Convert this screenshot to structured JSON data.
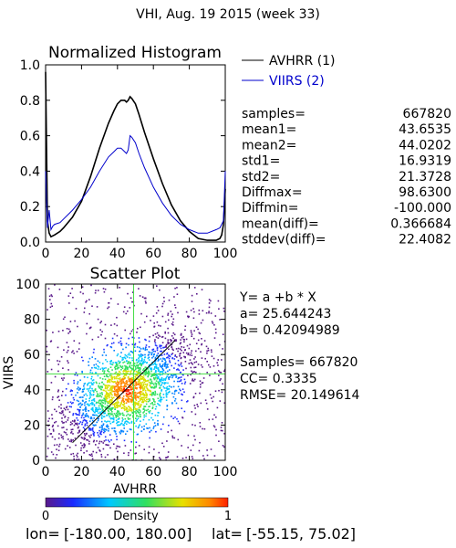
{
  "header": {
    "title": "VHI,  Aug. 19 2015 (week 33)"
  },
  "chart_data": [
    {
      "type": "line",
      "title": "Normalized Histogram",
      "xlabel": "",
      "ylabel": "",
      "xlim": [
        0,
        100
      ],
      "ylim": [
        0,
        1.0
      ],
      "x_ticks": [
        "0",
        "20",
        "40",
        "60",
        "80",
        "100"
      ],
      "y_ticks": [
        "0.0",
        "0.2",
        "0.4",
        "0.6",
        "0.8",
        "1.0"
      ],
      "legend_position": "top-right",
      "series": [
        {
          "name": "AVHRR (1)",
          "color": "#000000",
          "x": [
            0,
            1,
            2,
            3,
            5,
            8,
            10,
            15,
            20,
            25,
            30,
            35,
            38,
            40,
            42,
            44,
            45,
            46,
            47,
            48,
            50,
            52,
            55,
            60,
            65,
            70,
            75,
            80,
            85,
            90,
            95,
            97,
            98,
            99,
            100
          ],
          "y": [
            0.96,
            0.12,
            0.05,
            0.03,
            0.04,
            0.06,
            0.08,
            0.14,
            0.23,
            0.37,
            0.53,
            0.67,
            0.74,
            0.78,
            0.8,
            0.8,
            0.79,
            0.8,
            0.82,
            0.81,
            0.78,
            0.72,
            0.62,
            0.47,
            0.33,
            0.21,
            0.12,
            0.06,
            0.02,
            0.01,
            0.01,
            0.02,
            0.04,
            0.1,
            0.3
          ]
        },
        {
          "name": "VIIRS (2)",
          "color": "#0000cc",
          "x": [
            0,
            1,
            2,
            3,
            4,
            5,
            8,
            10,
            15,
            20,
            25,
            30,
            35,
            38,
            40,
            42,
            44,
            45,
            46,
            47,
            48,
            50,
            52,
            55,
            60,
            65,
            70,
            75,
            80,
            85,
            90,
            95,
            97,
            98,
            99,
            100
          ],
          "y": [
            0.4,
            0.08,
            0.18,
            0.07,
            0.09,
            0.1,
            0.11,
            0.13,
            0.18,
            0.24,
            0.31,
            0.4,
            0.48,
            0.51,
            0.53,
            0.53,
            0.51,
            0.5,
            0.52,
            0.6,
            0.59,
            0.56,
            0.5,
            0.42,
            0.31,
            0.22,
            0.15,
            0.1,
            0.07,
            0.05,
            0.05,
            0.07,
            0.08,
            0.1,
            0.12,
            0.4
          ]
        }
      ]
    },
    {
      "type": "scatter",
      "title": "Scatter Plot",
      "xlabel": "AVHRR",
      "ylabel": "VIIRS",
      "xlim": [
        0,
        100
      ],
      "ylim": [
        0,
        100
      ],
      "x_ticks": [
        "0",
        "20",
        "40",
        "60",
        "80",
        "100"
      ],
      "y_ticks": [
        "0",
        "20",
        "40",
        "60",
        "80",
        "100"
      ],
      "regression": {
        "a": 25.644243,
        "b": 0.42094989
      },
      "density_center": [
        45,
        40
      ],
      "colorbar": {
        "label": "Density",
        "min_label": "0",
        "max_label": "1"
      }
    }
  ],
  "stats": [
    {
      "label": "samples=",
      "value": "667820"
    },
    {
      "label": "mean1=",
      "value": "43.6535"
    },
    {
      "label": "mean2=",
      "value": "44.0202"
    },
    {
      "label": "std1=",
      "value": "16.9319"
    },
    {
      "label": "std2=",
      "value": "21.3728"
    },
    {
      "label": "Diffmax=",
      "value": "98.6300"
    },
    {
      "label": "Diffmin=",
      "value": "-100.000"
    },
    {
      "label": "mean(diff)=",
      "value": "0.366684"
    },
    {
      "label": "stddev(diff)=",
      "value": "22.4082"
    }
  ],
  "regression_text": {
    "equation": "Y= a +b * X",
    "a": "a= 25.644243",
    "b": "b= 0.42094989",
    "samples": "Samples= 667820",
    "cc": "CC=  0.3335",
    "rmse": "RMSE= 20.149614"
  },
  "footer": {
    "lon_label": "lon=",
    "lon_value": "[-180.00, 180.00]",
    "lat_label": "lat=",
    "lat_value": "[-55.15, 75.02]"
  },
  "colors": {
    "avhrr": "#000000",
    "viirs": "#0000cc",
    "crosshair": "#44dd44",
    "regression_line": "#000000"
  }
}
